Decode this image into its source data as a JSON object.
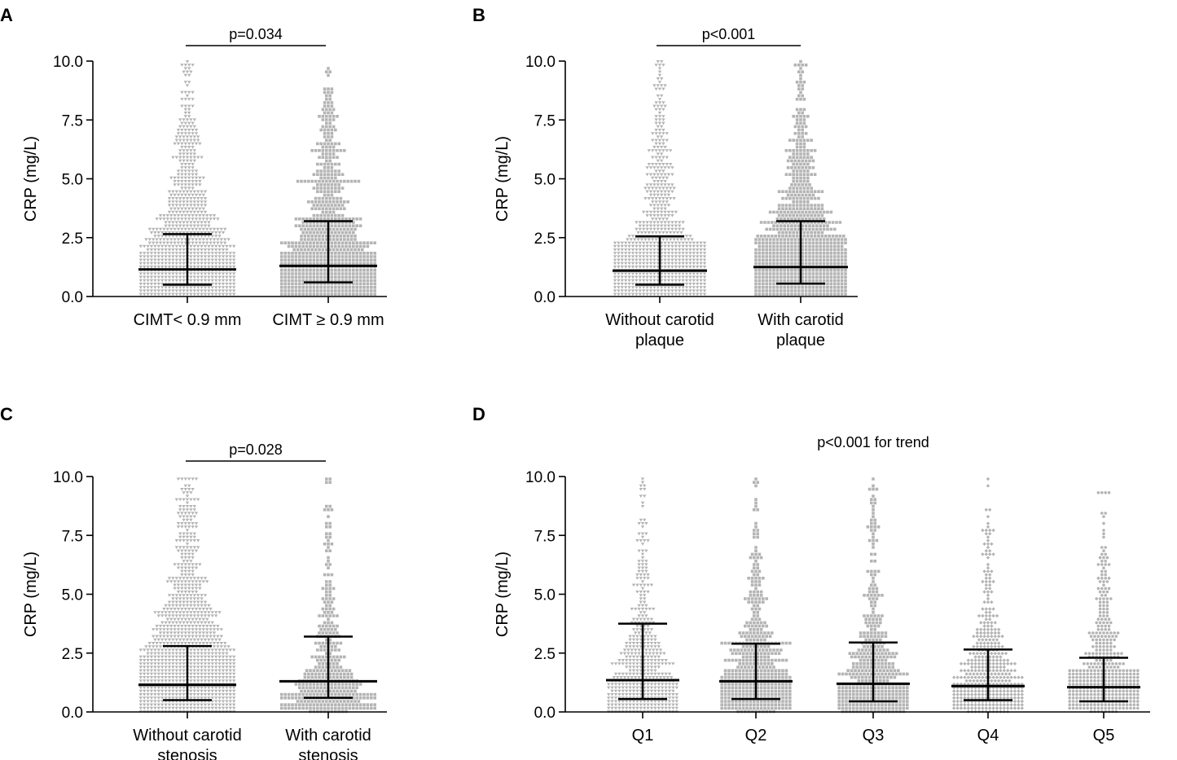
{
  "chart_data": [
    {
      "panel": "A",
      "type": "scatter",
      "subtype": "dot-plot-median-iqr",
      "ylabel": "CRP (mg/L)",
      "ylim": [
        0,
        10
      ],
      "yticks": [
        "0.0",
        "2.5",
        "5.0",
        "7.5",
        "10.0"
      ],
      "annotation": "p=0.034",
      "categories": [
        {
          "label": [
            "CIMT< 0.9 mm"
          ],
          "marker": "triangle",
          "median": 1.15,
          "q1": 0.5,
          "q3": 2.65,
          "n": 1500
        },
        {
          "label": [
            "CIMT ≥ 0.9 mm"
          ],
          "marker": "square",
          "median": 1.3,
          "q1": 0.6,
          "q3": 3.2,
          "n": 1300
        }
      ]
    },
    {
      "panel": "B",
      "type": "scatter",
      "subtype": "dot-plot-median-iqr",
      "ylabel": "CRP (mg/L)",
      "ylim": [
        0,
        10
      ],
      "yticks": [
        "0.0",
        "2.5",
        "5.0",
        "7.5",
        "10.0"
      ],
      "annotation": "p<0.001",
      "categories": [
        {
          "label": [
            "Without carotid",
            "plaque"
          ],
          "marker": "triangle",
          "median": 1.1,
          "q1": 0.5,
          "q3": 2.55,
          "n": 1300
        },
        {
          "label": [
            "With carotid",
            "plaque"
          ],
          "marker": "square",
          "median": 1.25,
          "q1": 0.55,
          "q3": 3.2,
          "n": 1500
        }
      ]
    },
    {
      "panel": "C",
      "type": "scatter",
      "subtype": "dot-plot-median-iqr",
      "ylabel": "CRP (mg/L)",
      "ylim": [
        0,
        10
      ],
      "yticks": [
        "0.0",
        "2.5",
        "5.0",
        "7.5",
        "10.0"
      ],
      "annotation": "p=0.028",
      "categories": [
        {
          "label": [
            "Without carotid",
            "stenosis"
          ],
          "marker": "triangle",
          "median": 1.15,
          "q1": 0.5,
          "q3": 2.8,
          "n": 2000
        },
        {
          "label": [
            "With carotid",
            "stenosis"
          ],
          "marker": "square",
          "median": 1.3,
          "q1": 0.6,
          "q3": 3.2,
          "n": 450
        }
      ]
    },
    {
      "panel": "D",
      "type": "scatter",
      "subtype": "dot-plot-median-iqr",
      "ylabel": "CRP (mg/L)",
      "ylim": [
        0,
        10
      ],
      "yticks": [
        "0.0",
        "2.5",
        "5.0",
        "7.5",
        "10.0"
      ],
      "annotation": "p<0.001 for trend",
      "categories": [
        {
          "label": [
            "Q1"
          ],
          "marker": "triangle",
          "median": 1.35,
          "q1": 0.55,
          "q3": 3.75,
          "n": 650
        },
        {
          "label": [
            "Q2"
          ],
          "marker": "square",
          "median": 1.3,
          "q1": 0.55,
          "q3": 2.9,
          "n": 650
        },
        {
          "label": [
            "Q3"
          ],
          "marker": "square",
          "median": 1.2,
          "q1": 0.45,
          "q3": 2.95,
          "n": 600
        },
        {
          "label": [
            "Q4"
          ],
          "marker": "diamond",
          "median": 1.1,
          "q1": 0.5,
          "q3": 2.65,
          "n": 600
        },
        {
          "label": [
            "Q5"
          ],
          "marker": "circle",
          "median": 1.05,
          "q1": 0.45,
          "q3": 2.3,
          "n": 600
        }
      ]
    }
  ]
}
